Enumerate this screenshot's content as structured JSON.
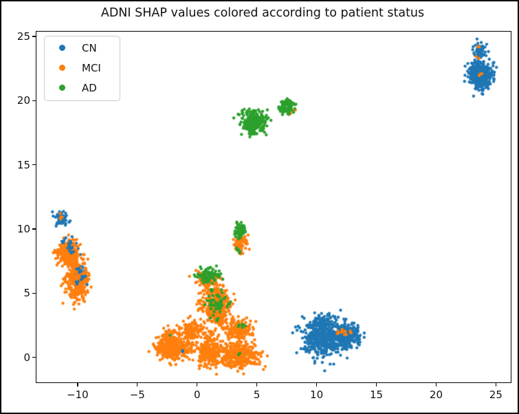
{
  "figure": {
    "background": "#ffffff",
    "frame_color": "#000000"
  },
  "legend": {
    "position": "upper left",
    "items": [
      {
        "label": "CN",
        "color": "#1f77b4"
      },
      {
        "label": "MCI",
        "color": "#ff7f0e"
      },
      {
        "label": "AD",
        "color": "#2ca02c"
      }
    ]
  },
  "chart_data": {
    "type": "scatter",
    "title": "ADNI SHAP values colored according to patient status",
    "xlabel": "",
    "ylabel": "",
    "xlim": [
      -13.5,
      26.3
    ],
    "ylim": [
      -2.0,
      25.43
    ],
    "xticks": [
      -10,
      -5,
      0,
      5,
      10,
      15,
      20,
      25
    ],
    "xtick_labels": [
      "−10",
      "−5",
      "0",
      "5",
      "10",
      "15",
      "20",
      "25"
    ],
    "yticks": [
      0,
      5,
      10,
      15,
      20,
      25
    ],
    "ytick_labels": [
      "0",
      "5",
      "10",
      "15",
      "20",
      "25"
    ],
    "grid": false,
    "marker_radius_px": 2.2,
    "legend_position": "upper left",
    "series": [
      {
        "name": "CN",
        "color": "#1f77b4"
      },
      {
        "name": "MCI",
        "color": "#ff7f0e"
      },
      {
        "name": "AD",
        "color": "#2ca02c"
      }
    ],
    "cluster_note": "Point cloud approximated as gaussian clusters: s=series, x/y=center (data units), sx/sy=std dev, n=point count. Listed in draw (z) order.",
    "clusters": [
      {
        "s": "CN",
        "x": 23.7,
        "y": 21.95,
        "sx": 0.5,
        "sy": 0.52,
        "n": 380
      },
      {
        "s": "CN",
        "x": 23.6,
        "y": 23.8,
        "sx": 0.28,
        "sy": 0.38,
        "n": 70
      },
      {
        "s": "CN",
        "x": 10.5,
        "y": 1.5,
        "sx": 0.78,
        "sy": 0.68,
        "n": 460
      },
      {
        "s": "CN",
        "x": 12.4,
        "y": 1.65,
        "sx": 0.55,
        "sy": 0.45,
        "n": 230
      },
      {
        "s": "CN",
        "x": 10.6,
        "y": 2.9,
        "sx": 0.4,
        "sy": 0.28,
        "n": 55
      },
      {
        "s": "CN",
        "x": 13.1,
        "y": 1.8,
        "sx": 0.3,
        "sy": 0.28,
        "n": 35
      },
      {
        "s": "CN",
        "x": -11.3,
        "y": 10.85,
        "sx": 0.27,
        "sy": 0.32,
        "n": 55
      },
      {
        "s": "CN",
        "x": -10.65,
        "y": 8.45,
        "sx": 0.38,
        "sy": 0.38,
        "n": 55
      },
      {
        "s": "CN",
        "x": -9.85,
        "y": 6.4,
        "sx": 0.3,
        "sy": 0.45,
        "n": 40
      },
      {
        "s": "MCI",
        "x": -11.35,
        "y": 10.95,
        "sx": 0.1,
        "sy": 0.1,
        "n": 4
      },
      {
        "s": "MCI",
        "x": -10.9,
        "y": 8.2,
        "sx": 0.45,
        "sy": 0.45,
        "n": 210
      },
      {
        "s": "MCI",
        "x": -10.05,
        "y": 6.0,
        "sx": 0.48,
        "sy": 0.75,
        "n": 330
      },
      {
        "s": "MCI",
        "x": 0.82,
        "y": 6.05,
        "sx": 0.42,
        "sy": 0.33,
        "n": 95
      },
      {
        "s": "MCI",
        "x": 1.65,
        "y": 3.95,
        "sx": 0.55,
        "sy": 0.72,
        "n": 380
      },
      {
        "s": "MCI",
        "x": 3.7,
        "y": 8.9,
        "sx": 0.27,
        "sy": 0.37,
        "n": 75
      },
      {
        "s": "MCI",
        "x": -0.45,
        "y": 2.1,
        "sx": 0.5,
        "sy": 0.38,
        "n": 115
      },
      {
        "s": "MCI",
        "x": 3.55,
        "y": 2.15,
        "sx": 0.57,
        "sy": 0.43,
        "n": 160
      },
      {
        "s": "MCI",
        "x": -2.0,
        "y": 0.8,
        "sx": 0.7,
        "sy": 0.5,
        "n": 330
      },
      {
        "s": "MCI",
        "x": -2.4,
        "y": 1.5,
        "sx": 0.35,
        "sy": 0.3,
        "n": 60
      },
      {
        "s": "MCI",
        "x": 0.95,
        "y": 0.4,
        "sx": 0.52,
        "sy": 0.55,
        "n": 230
      },
      {
        "s": "MCI",
        "x": 3.4,
        "y": 0.15,
        "sx": 0.8,
        "sy": 0.48,
        "n": 400
      },
      {
        "s": "MCI",
        "x": 0.15,
        "y": 2.3,
        "sx": 0.3,
        "sy": 0.25,
        "n": 12
      },
      {
        "s": "MCI",
        "x": 1.1,
        "y": 1.4,
        "sx": 0.35,
        "sy": 0.35,
        "n": 18
      },
      {
        "s": "MCI",
        "x": 2.45,
        "y": 2.6,
        "sx": 0.3,
        "sy": 0.3,
        "n": 15
      },
      {
        "s": "MCI",
        "x": 0.35,
        "y": 4.4,
        "sx": 0.3,
        "sy": 0.45,
        "n": 12
      },
      {
        "s": "MCI",
        "x": -0.9,
        "y": 0.7,
        "sx": 0.3,
        "sy": 0.3,
        "n": 12
      },
      {
        "s": "MCI",
        "x": 8.05,
        "y": 19.2,
        "sx": 0.12,
        "sy": 0.1,
        "n": 4
      },
      {
        "s": "MCI",
        "x": 7.8,
        "y": 18.9,
        "sx": 0.1,
        "sy": 0.1,
        "n": 3
      },
      {
        "s": "MCI",
        "x": 23.7,
        "y": 22.0,
        "sx": 0.1,
        "sy": 0.1,
        "n": 3
      },
      {
        "s": "MCI",
        "x": 23.6,
        "y": 24.1,
        "sx": 0.08,
        "sy": 0.08,
        "n": 2
      },
      {
        "s": "MCI",
        "x": 23.5,
        "y": 23.35,
        "sx": 0.08,
        "sy": 0.08,
        "n": 2
      },
      {
        "s": "MCI",
        "x": 12.3,
        "y": 1.95,
        "sx": 0.25,
        "sy": 0.12,
        "n": 10
      },
      {
        "s": "MCI",
        "x": 12.85,
        "y": 1.9,
        "sx": 0.1,
        "sy": 0.1,
        "n": 3
      },
      {
        "s": "AD",
        "x": 4.73,
        "y": 18.3,
        "sx": 0.5,
        "sy": 0.44,
        "n": 300
      },
      {
        "s": "AD",
        "x": 7.5,
        "y": 19.55,
        "sx": 0.33,
        "sy": 0.28,
        "n": 90
      },
      {
        "s": "AD",
        "x": 3.62,
        "y": 9.85,
        "sx": 0.26,
        "sy": 0.34,
        "n": 65
      },
      {
        "s": "AD",
        "x": 3.5,
        "y": 8.45,
        "sx": 0.12,
        "sy": 0.18,
        "n": 6
      },
      {
        "s": "AD",
        "x": 0.9,
        "y": 6.4,
        "sx": 0.42,
        "sy": 0.3,
        "n": 85
      },
      {
        "s": "AD",
        "x": 1.75,
        "y": 4.25,
        "sx": 0.5,
        "sy": 0.6,
        "n": 65
      },
      {
        "s": "AD",
        "x": 3.65,
        "y": 2.45,
        "sx": 0.22,
        "sy": 0.16,
        "n": 8
      },
      {
        "s": "AD",
        "x": 3.55,
        "y": 0.3,
        "sx": 0.08,
        "sy": 0.08,
        "n": 2
      },
      {
        "s": "AD",
        "x": -2.2,
        "y": 1.7,
        "sx": 0.06,
        "sy": 0.06,
        "n": 1
      },
      {
        "s": "CN",
        "x": -10.85,
        "y": 8.85,
        "sx": 0.22,
        "sy": 0.18,
        "n": 10
      },
      {
        "s": "CN",
        "x": -10.45,
        "y": 8.4,
        "sx": 0.18,
        "sy": 0.15,
        "n": 8
      },
      {
        "s": "CN",
        "x": -9.95,
        "y": 6.85,
        "sx": 0.15,
        "sy": 0.12,
        "n": 6
      },
      {
        "s": "CN",
        "x": -10.05,
        "y": 5.9,
        "sx": 0.1,
        "sy": 0.1,
        "n": 4
      },
      {
        "s": "CN",
        "x": -9.5,
        "y": 6.2,
        "sx": 0.12,
        "sy": 0.25,
        "n": 6
      },
      {
        "s": "CN",
        "x": -1.15,
        "y": 0.45,
        "sx": 0.05,
        "sy": 0.05,
        "n": 2
      }
    ]
  }
}
